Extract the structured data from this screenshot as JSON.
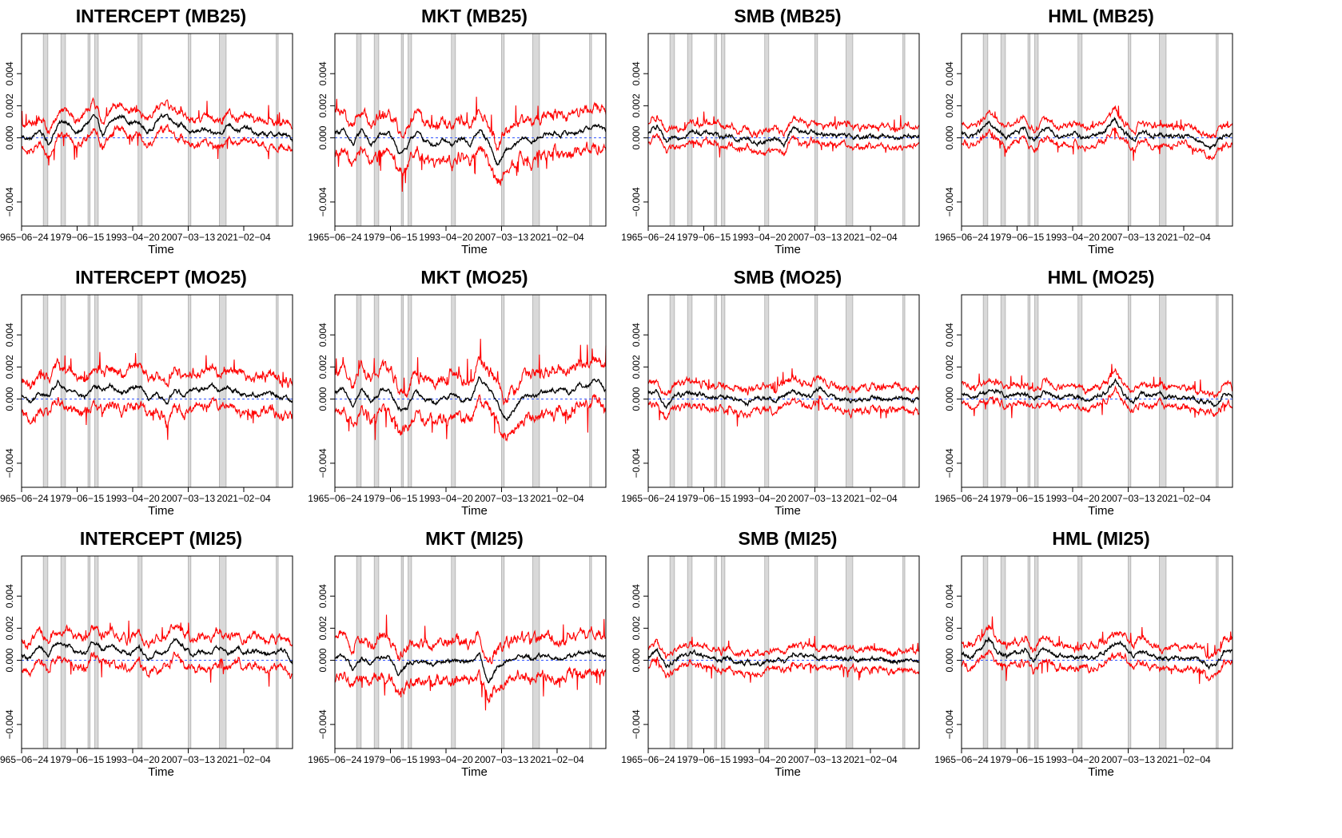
{
  "chart_data": [
    {
      "type": "line",
      "title": "INTERCEPT (MB25)",
      "xlabel": "Time",
      "ylabel": "",
      "x_tick_labels": [
        "1965-06-24",
        "1979-06-15",
        "1993-04-20",
        "2007-03-13",
        "2021-02-04"
      ],
      "y_tick_labels": [
        "-0.004",
        "0.000",
        "0.002",
        "0.004"
      ],
      "ylim": [
        -0.0055,
        0.0065
      ],
      "series": [
        {
          "values": [
            0.0001,
            -0.0001,
            0.0005,
            -0.0004,
            0.0008,
            0.0011,
            0.0002,
            0.0007,
            0.0014,
            0.0002,
            0.001,
            0.0014,
            0.001,
            0.0009,
            0.0003,
            0.0011,
            0.0015,
            0.001,
            0.0007,
            0.0002,
            0.0006,
            0.0002,
            0.0003,
            0.0009,
            0.0005,
            0.0006,
            0.0002,
            0.0002,
            0.0002,
            0.0002,
            -0.0001
          ]
        }
      ],
      "ribbon": {
        "color": "#ff0000",
        "half_width": 0.0008
      },
      "zero_line": {
        "color": "#3355ff",
        "style": "dashed"
      },
      "recession_bands_color": "#d9d9d9"
    },
    {
      "type": "line",
      "title": "MKT (MB25)",
      "xlabel": "Time",
      "ylabel": "",
      "x_tick_labels": [
        "1965-06-24",
        "1979-06-15",
        "1993-04-20",
        "2007-03-13",
        "2021-02-04"
      ],
      "y_tick_labels": [
        "-0.004",
        "0.000",
        "0.002",
        "0.004"
      ],
      "ylim": [
        -0.0055,
        0.0065
      ],
      "series": [
        {
          "values": [
            0.0004,
            0.0004,
            -0.0005,
            0.0006,
            -0.0005,
            0.0002,
            0.0003,
            -0.0009,
            -0.0006,
            0.0004,
            -0.0002,
            -0.0004,
            -0.0002,
            -0.0005,
            0.0,
            -0.0004,
            0.0005,
            -0.0002,
            -0.0017,
            -0.0008,
            -0.0005,
            0.0,
            -0.0003,
            0.0002,
            0.0003,
            0.0002,
            0.0003,
            0.0004,
            0.0006,
            0.0008,
            0.0004
          ]
        }
      ],
      "ribbon": {
        "color": "#ff0000",
        "half_width": 0.0012
      },
      "zero_line": {
        "color": "#3355ff",
        "style": "dashed"
      },
      "recession_bands_color": "#d9d9d9"
    },
    {
      "type": "line",
      "title": "SMB (MB25)",
      "xlabel": "Time",
      "ylabel": "",
      "x_tick_labels": [
        "1965-06-24",
        "1979-06-15",
        "1993-04-20",
        "2007-03-13",
        "2021-02-04"
      ],
      "y_tick_labels": [
        "-0.004",
        "0.000",
        "0.002",
        "0.004"
      ],
      "ylim": [
        -0.0055,
        0.0065
      ],
      "series": [
        {
          "values": [
            0.0002,
            0.0008,
            -0.0004,
            0.0,
            0.0002,
            0.0004,
            0.0003,
            0.0003,
            0.0001,
            0.0002,
            -0.0002,
            0.0,
            -0.0004,
            -0.0002,
            0.0,
            -0.0004,
            0.0006,
            0.0003,
            0.0004,
            0.0001,
            0.0003,
            0.0002,
            0.0,
            0.0001,
            0.0,
            0.0001,
            0.0002,
            0.0,
            0.0001,
            0.0002,
            0.0
          ]
        }
      ],
      "ribbon": {
        "color": "#ff0000",
        "half_width": 0.0006
      },
      "zero_line": {
        "color": "#3355ff",
        "style": "dashed"
      },
      "recession_bands_color": "#d9d9d9"
    },
    {
      "type": "line",
      "title": "HML (MB25)",
      "xlabel": "Time",
      "ylabel": "",
      "x_tick_labels": [
        "1965-06-24",
        "1979-06-15",
        "1993-04-20",
        "2007-03-13",
        "2021-02-04"
      ],
      "y_tick_labels": [
        "-0.004",
        "0.000",
        "0.002",
        "0.004"
      ],
      "ylim": [
        -0.0055,
        0.0065
      ],
      "series": [
        {
          "values": [
            0.0002,
            0.0001,
            0.0004,
            0.0009,
            0.0004,
            0.0,
            0.0003,
            0.0005,
            -0.0002,
            0.0006,
            0.0003,
            0.0001,
            0.0003,
            0.0001,
            0.0,
            0.0002,
            0.0005,
            0.0012,
            0.0003,
            -0.0001,
            0.0003,
            0.0002,
            0.0002,
            0.0,
            0.0002,
            0.0001,
            0.0,
            -0.0004,
            -0.0006,
            0.0002,
            0.0002
          ]
        }
      ],
      "ribbon": {
        "color": "#ff0000",
        "half_width": 0.0006
      },
      "zero_line": {
        "color": "#3355ff",
        "style": "dashed"
      },
      "recession_bands_color": "#d9d9d9"
    },
    {
      "type": "line",
      "title": "INTERCEPT (MO25)",
      "xlabel": "Time",
      "ylabel": "",
      "x_tick_labels": [
        "1965-06-24",
        "1979-06-15",
        "1993-04-20",
        "2007-03-13",
        "2021-02-04"
      ],
      "y_tick_labels": [
        "-0.004",
        "0.000",
        "0.002",
        "0.004"
      ],
      "ylim": [
        -0.0055,
        0.0065
      ],
      "series": [
        {
          "values": [
            0.0002,
            -0.0002,
            0.0004,
            0.0001,
            0.001,
            0.0004,
            0.0006,
            0.0001,
            0.0008,
            0.0006,
            0.0009,
            0.0004,
            0.0006,
            0.0009,
            0.0001,
            0.0003,
            -0.0003,
            0.0006,
            0.0003,
            0.0007,
            0.0006,
            0.001,
            0.0005,
            0.0007,
            0.0004,
            0.0003,
            0.0003,
            0.0004,
            0.0002,
            0.0001,
            0.0
          ]
        }
      ],
      "ribbon": {
        "color": "#ff0000",
        "half_width": 0.0011
      },
      "zero_line": {
        "color": "#3355ff",
        "style": "dashed"
      },
      "recession_bands_color": "#d9d9d9"
    },
    {
      "type": "line",
      "title": "MKT (MO25)",
      "xlabel": "Time",
      "ylabel": "",
      "x_tick_labels": [
        "1965-06-24",
        "1979-06-15",
        "1993-04-20",
        "2007-03-13",
        "2021-02-04"
      ],
      "y_tick_labels": [
        "-0.004",
        "0.000",
        "0.002",
        "0.004"
      ],
      "ylim": [
        -0.0055,
        0.0065
      ],
      "series": [
        {
          "values": [
            0.0004,
            0.0006,
            -0.0004,
            0.0007,
            -0.0002,
            0.0005,
            0.0007,
            -0.0006,
            -0.0005,
            0.0007,
            0.0,
            -0.0003,
            0.0,
            0.0004,
            -0.0001,
            0.0,
            0.0014,
            0.0007,
            -0.0003,
            -0.0012,
            -0.0005,
            0.0003,
            0.0001,
            0.0004,
            0.0005,
            0.0007,
            0.0004,
            0.0008,
            0.0009,
            0.0012,
            0.0005
          ]
        }
      ],
      "ribbon": {
        "color": "#ff0000",
        "half_width": 0.0013
      },
      "zero_line": {
        "color": "#3355ff",
        "style": "dashed"
      },
      "recession_bands_color": "#d9d9d9"
    },
    {
      "type": "line",
      "title": "SMB (MO25)",
      "xlabel": "Time",
      "ylabel": "",
      "x_tick_labels": [
        "1965-06-24",
        "1979-06-15",
        "1993-04-20",
        "2007-03-13",
        "2021-02-04"
      ],
      "y_tick_labels": [
        "-0.004",
        "0.000",
        "0.002",
        "0.004"
      ],
      "ylim": [
        -0.0055,
        0.0065
      ],
      "series": [
        {
          "values": [
            0.0003,
            0.0004,
            -0.0006,
            0.0003,
            0.0002,
            0.0004,
            0.0003,
            0.0001,
            0.0,
            0.0001,
            0.0,
            -0.0002,
            0.0,
            0.0001,
            -0.0002,
            0.0002,
            0.0006,
            0.0002,
            0.0001,
            0.0007,
            0.0002,
            0.0,
            0.0001,
            -0.0002,
            0.0,
            0.0001,
            0.0,
            0.0,
            0.0001,
            -0.0001,
            -0.0002
          ]
        }
      ],
      "ribbon": {
        "color": "#ff0000",
        "half_width": 0.0007
      },
      "zero_line": {
        "color": "#3355ff",
        "style": "dashed"
      },
      "recession_bands_color": "#d9d9d9"
    },
    {
      "type": "line",
      "title": "HML (MO25)",
      "xlabel": "Time",
      "ylabel": "",
      "x_tick_labels": [
        "1965-06-24",
        "1979-06-15",
        "1993-04-20",
        "2007-03-13",
        "2021-02-04"
      ],
      "y_tick_labels": [
        "-0.004",
        "0.000",
        "0.002",
        "0.004"
      ],
      "ylim": [
        -0.0055,
        0.0065
      ],
      "series": [
        {
          "values": [
            0.0002,
            0.0001,
            0.0003,
            0.0005,
            0.0005,
            0.0001,
            0.0002,
            0.0004,
            -0.0001,
            0.0004,
            0.0002,
            0.0001,
            0.0002,
            0.0001,
            0.0,
            0.0002,
            0.0004,
            0.0012,
            0.0002,
            -0.0002,
            0.0003,
            0.0002,
            0.0003,
            0.0001,
            0.0001,
            0.0001,
            0.0,
            -0.0002,
            -0.0004,
            0.0004,
            0.0002
          ]
        }
      ],
      "ribbon": {
        "color": "#ff0000",
        "half_width": 0.0006
      },
      "zero_line": {
        "color": "#3355ff",
        "style": "dashed"
      },
      "recession_bands_color": "#d9d9d9"
    },
    {
      "type": "line",
      "title": "INTERCEPT (MI25)",
      "xlabel": "Time",
      "ylabel": "",
      "x_tick_labels": [
        "1965-06-24",
        "1979-06-15",
        "1993-04-20",
        "2007-03-13",
        "2021-02-04"
      ],
      "y_tick_labels": [
        "-0.004",
        "0.000",
        "0.002",
        "0.004"
      ],
      "ylim": [
        -0.0055,
        0.0065
      ],
      "series": [
        {
          "values": [
            0.0004,
            0.0002,
            0.0009,
            0.0004,
            0.0011,
            0.001,
            0.0006,
            0.0005,
            0.0012,
            0.0007,
            0.001,
            0.0007,
            0.0004,
            0.0008,
            0.0001,
            0.0005,
            0.0004,
            0.0013,
            0.0009,
            0.0003,
            0.0006,
            0.0005,
            0.0008,
            0.0004,
            0.0007,
            0.0005,
            0.0006,
            0.0003,
            0.0004,
            0.0007,
            -0.0002
          ]
        }
      ],
      "ribbon": {
        "color": "#ff0000",
        "half_width": 0.0009
      },
      "zero_line": {
        "color": "#3355ff",
        "style": "dashed"
      },
      "recession_bands_color": "#d9d9d9"
    },
    {
      "type": "line",
      "title": "MKT (MI25)",
      "xlabel": "Time",
      "ylabel": "",
      "x_tick_labels": [
        "1965-06-24",
        "1979-06-15",
        "1993-04-20",
        "2007-03-13",
        "2021-02-04"
      ],
      "y_tick_labels": [
        "-0.004",
        "0.000",
        "0.002",
        "0.004"
      ],
      "ylim": [
        -0.0055,
        0.0065
      ],
      "series": [
        {
          "values": [
            0.0002,
            0.0003,
            -0.0005,
            0.0001,
            -0.0002,
            0.0002,
            0.0004,
            -0.0008,
            -0.0003,
            0.0001,
            -0.0001,
            -0.0002,
            -0.0001,
            0.0,
            0.0,
            -0.0001,
            0.0005,
            -0.0014,
            -0.0004,
            -0.0001,
            0.0003,
            0.0002,
            0.0001,
            0.0003,
            0.0002,
            0.0001,
            0.0002,
            0.0004,
            0.0004,
            0.0006,
            0.0003
          ]
        }
      ],
      "ribbon": {
        "color": "#ff0000",
        "half_width": 0.0012
      },
      "zero_line": {
        "color": "#3355ff",
        "style": "dashed"
      },
      "recession_bands_color": "#d9d9d9"
    },
    {
      "type": "line",
      "title": "SMB (MI25)",
      "xlabel": "Time",
      "ylabel": "",
      "x_tick_labels": [
        "1965-06-24",
        "1979-06-15",
        "1993-04-20",
        "2007-03-13",
        "2021-02-04"
      ],
      "y_tick_labels": [
        "-0.004",
        "0.000",
        "0.002",
        "0.004"
      ],
      "ylim": [
        -0.0055,
        0.0065
      ],
      "series": [
        {
          "values": [
            0.0002,
            0.0007,
            -0.0005,
            0.0001,
            0.0003,
            0.0006,
            0.0003,
            0.0002,
            0.0,
            0.0001,
            -0.0001,
            -0.0002,
            -0.0003,
            -0.0001,
            0.0001,
            -0.0002,
            0.0004,
            0.0003,
            0.0002,
            0.0002,
            0.0001,
            0.0002,
            0.0001,
            0.0,
            0.0,
            0.0001,
            0.0,
            -0.0001,
            0.0,
            0.0001,
            -0.0001
          ]
        }
      ],
      "ribbon": {
        "color": "#ff0000",
        "half_width": 0.0006
      },
      "zero_line": {
        "color": "#3355ff",
        "style": "dashed"
      },
      "recession_bands_color": "#d9d9d9"
    },
    {
      "type": "line",
      "title": "HML (MI25)",
      "xlabel": "Time",
      "ylabel": "",
      "x_tick_labels": [
        "1965-06-24",
        "1979-06-15",
        "1993-04-20",
        "2007-03-13",
        "2021-02-04"
      ],
      "y_tick_labels": [
        "-0.004",
        "0.000",
        "0.002",
        "0.004"
      ],
      "ylim": [
        -0.0055,
        0.0065
      ],
      "series": [
        {
          "values": [
            0.0004,
            0.0002,
            0.0006,
            0.0013,
            0.0006,
            0.0002,
            0.0004,
            0.0007,
            0.0,
            0.0007,
            0.0004,
            0.0002,
            0.0003,
            0.0002,
            0.0001,
            0.0003,
            0.0006,
            0.0011,
            0.0009,
            0.0003,
            0.0005,
            0.0004,
            0.0002,
            0.0001,
            0.0002,
            0.0001,
            0.0002,
            -0.0003,
            -0.0005,
            0.0006,
            0.0004
          ]
        }
      ],
      "ribbon": {
        "color": "#ff0000",
        "half_width": 0.0007
      },
      "zero_line": {
        "color": "#3355ff",
        "style": "dashed"
      },
      "recession_bands_color": "#d9d9d9"
    }
  ]
}
